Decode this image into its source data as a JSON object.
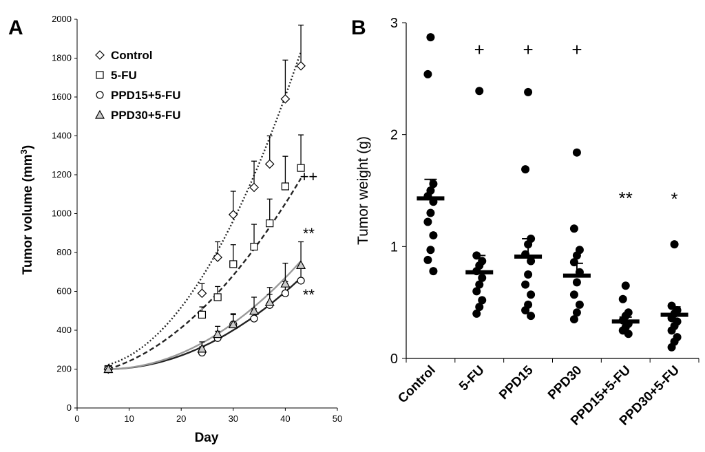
{
  "chart_data": [
    {
      "type": "line",
      "panel": "A",
      "xlabel": "Day",
      "ylabel": "Tumor volume (mm",
      "ylabel_sup": "3",
      "ylabel_close": ")",
      "xlim": [
        0,
        50
      ],
      "ylim": [
        0,
        2000
      ],
      "xticks": [
        0,
        10,
        20,
        30,
        40,
        50
      ],
      "yticks": [
        0,
        200,
        400,
        600,
        800,
        1000,
        1200,
        1400,
        1600,
        1800,
        2000
      ],
      "legend_position": "top-left",
      "series": [
        {
          "name": "Control",
          "marker": "diamond",
          "trend": "dotted",
          "trend_color": "#222222",
          "x": [
            6,
            24,
            27,
            30,
            34,
            37,
            40,
            43
          ],
          "y": [
            200,
            590,
            775,
            995,
            1135,
            1255,
            1590,
            1760
          ],
          "err": [
            10,
            50,
            80,
            120,
            135,
            145,
            200,
            210
          ],
          "fit": [
            0.976,
            -4.26,
            213
          ]
        },
        {
          "name": "5-FU",
          "marker": "square",
          "trend": "dashed",
          "trend_color": "#222222",
          "x": [
            6,
            24,
            27,
            30,
            34,
            37,
            40,
            43
          ],
          "y": [
            200,
            480,
            570,
            740,
            830,
            950,
            1140,
            1235
          ],
          "err": [
            10,
            40,
            55,
            100,
            115,
            125,
            155,
            170
          ],
          "fit": [
            0.493,
            2.37,
            168
          ]
        },
        {
          "name": "PPD15+5-FU",
          "marker": "circle",
          "trend": "solid",
          "trend_color": "#222222",
          "x": [
            6,
            24,
            27,
            30,
            34,
            37,
            40,
            43
          ],
          "y": [
            200,
            285,
            360,
            430,
            460,
            530,
            590,
            655
          ],
          "err": [
            10,
            30,
            35,
            50,
            50,
            55,
            60,
            70
          ],
          "fit": [
            0.335,
            -3.71,
            210
          ]
        },
        {
          "name": "PPD30+5-FU",
          "marker": "triangle",
          "trend": "solid",
          "trend_color": "#999999",
          "x": [
            6,
            24,
            27,
            30,
            34,
            37,
            40,
            43
          ],
          "y": [
            200,
            305,
            380,
            430,
            500,
            545,
            640,
            735
          ],
          "err": [
            10,
            35,
            40,
            55,
            70,
            75,
            105,
            120
          ],
          "fit": [
            0.399,
            -4.53,
            213
          ]
        }
      ],
      "annotations": [
        {
          "text": "++",
          "x": 44.5,
          "y": 1165
        },
        {
          "text": "**",
          "x": 44.5,
          "y": 870
        },
        {
          "text": "**",
          "x": 44.5,
          "y": 555
        }
      ]
    },
    {
      "type": "scatter",
      "panel": "B",
      "ylabel": "Tumor weight (g)",
      "ylim": [
        0,
        3
      ],
      "yticks": [
        0,
        1,
        2,
        3
      ],
      "categories": [
        "Control",
        "5-FU",
        "PPD15",
        "PPD30",
        "PPD15+5-FU",
        "PPD30+5-FU"
      ],
      "points": [
        [
          2.87,
          2.54,
          1.56,
          1.5,
          1.45,
          1.4,
          1.3,
          1.22,
          1.1,
          0.97,
          0.88,
          0.78
        ],
        [
          2.39,
          0.92,
          0.87,
          0.83,
          0.78,
          0.72,
          0.66,
          0.6,
          0.52,
          0.46,
          0.4
        ],
        [
          2.38,
          1.69,
          1.07,
          1.02,
          0.93,
          0.87,
          0.75,
          0.66,
          0.57,
          0.48,
          0.43,
          0.38
        ],
        [
          1.84,
          1.16,
          0.97,
          0.92,
          0.86,
          0.77,
          0.68,
          0.57,
          0.48,
          0.41,
          0.35
        ],
        [
          0.65,
          0.53,
          0.41,
          0.38,
          0.34,
          0.31,
          0.28,
          0.25,
          0.22
        ],
        [
          1.02,
          0.47,
          0.43,
          0.4,
          0.36,
          0.33,
          0.29,
          0.25,
          0.19,
          0.15,
          0.1
        ]
      ],
      "means": [
        1.43,
        0.77,
        0.91,
        0.74,
        0.33,
        0.39
      ],
      "sem": [
        0.17,
        0.15,
        0.16,
        0.11,
        0.04,
        0.07
      ],
      "annotations": [
        "",
        "+",
        "+",
        "+",
        "**",
        "*"
      ]
    }
  ]
}
